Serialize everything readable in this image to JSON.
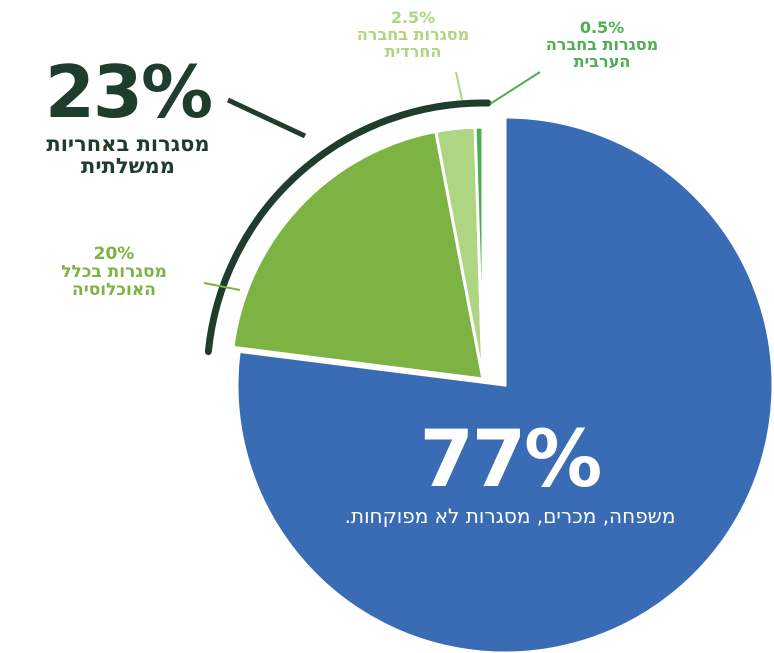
{
  "chart_data": {
    "type": "pie",
    "series": [
      {
        "values": [
          77,
          20,
          2.5,
          0.5
        ],
        "labels": [
          "משפחה, מכרים, מסגרות לא מפוקחות.",
          "מסגרות בכלל האוכלוסיה",
          "מסגרות בחברה החרדית",
          "מסגרות בחברה הערבית"
        ],
        "colors": [
          "#3a6bb5",
          "#7cb342",
          "#aed581",
          "#4caf50"
        ]
      }
    ],
    "group_bracket": {
      "covers": [
        1,
        2,
        3
      ],
      "total_value": 23,
      "color": "#1f3d2c"
    },
    "data_labels": {
      "main_pct": "77%",
      "main_text": "משפחה, מכרים, מסגרות לא מפוקחות.",
      "group_pct": "23%",
      "group_line1": "מסגרות באחריות",
      "group_line2": "ממשלתית",
      "s20_pct": "20%",
      "s20_line1": "מסגרות בכלל",
      "s20_line2": "האוכלוסיה",
      "s25_pct": "2.5%",
      "s25_line1": "מסגרות בחברה",
      "s25_line2": "החרדית",
      "s05_pct": "0.5%",
      "s05_line1": "מסגרות בחברה",
      "s05_line2": "הערבית"
    }
  }
}
